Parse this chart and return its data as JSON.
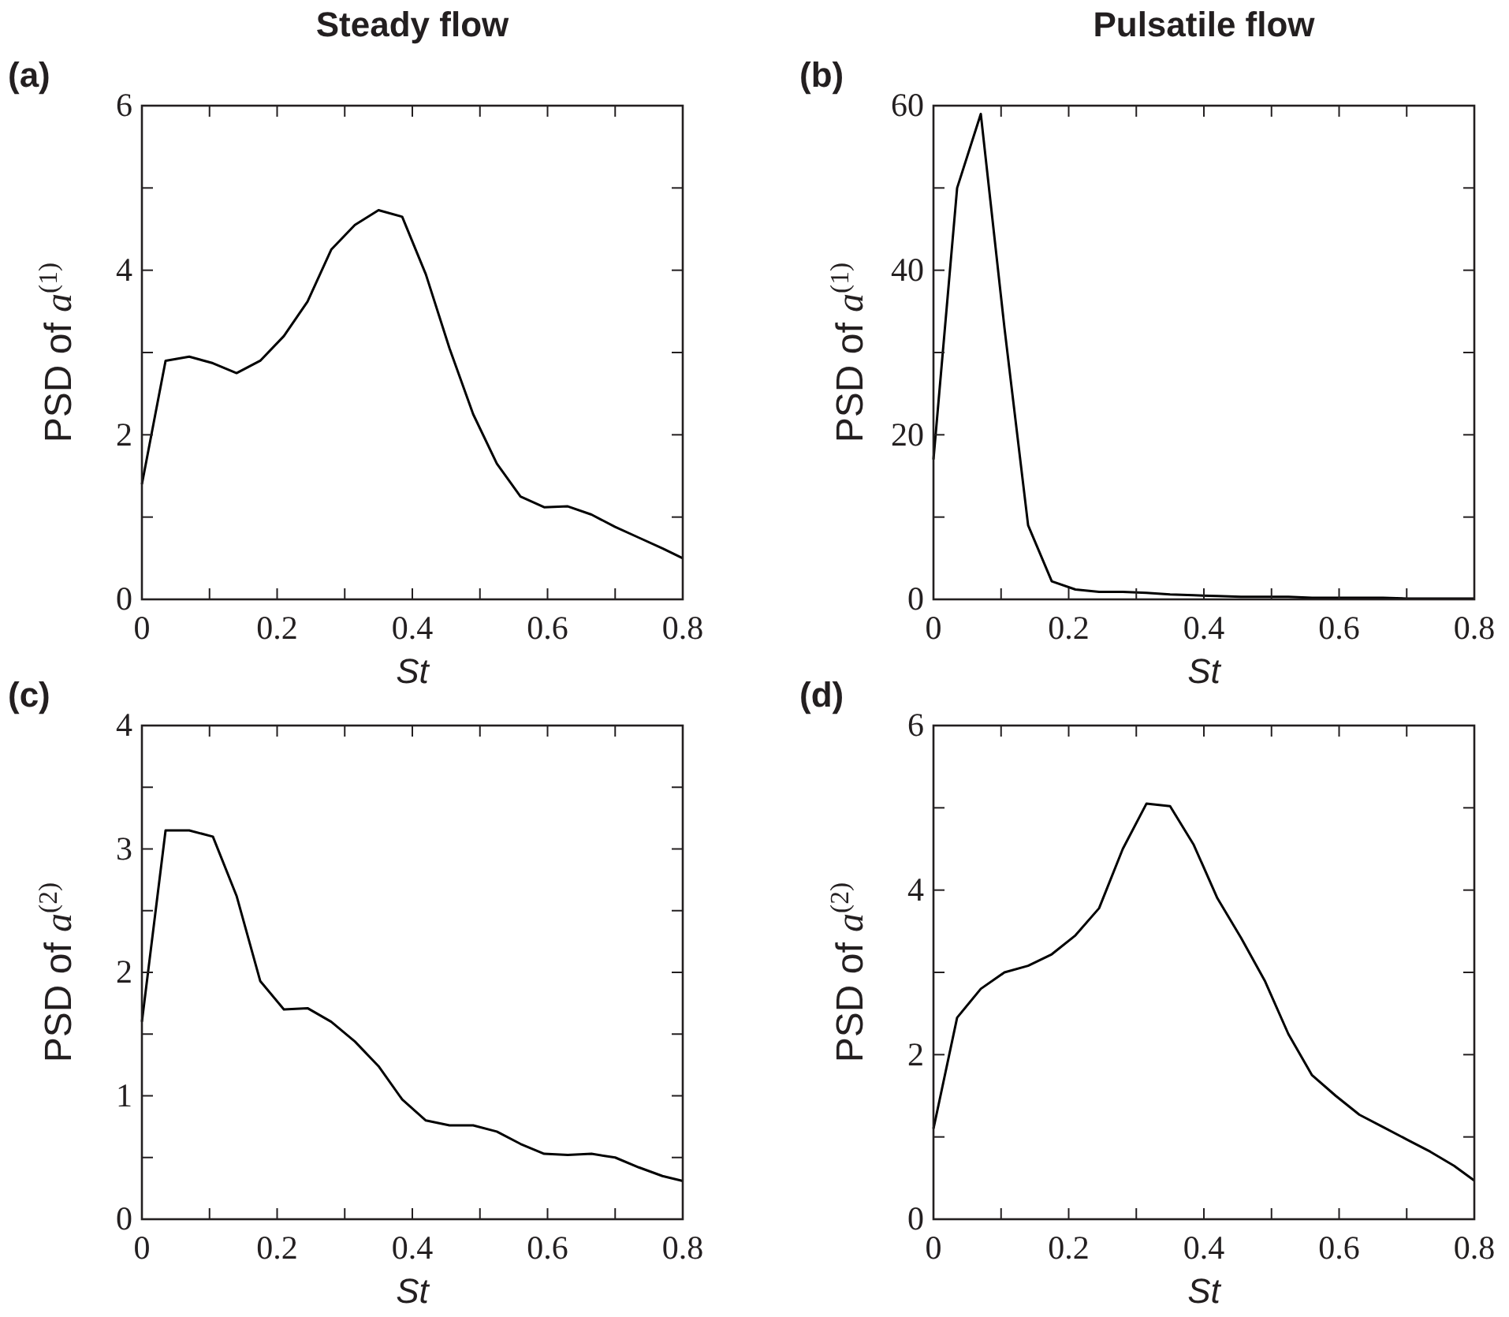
{
  "chart_data": [
    {
      "type": "line",
      "title": "Steady flow",
      "annotations": [
        "(a)"
      ],
      "xlabel": "St",
      "ylabel": "PSD of a$^{(1)}$",
      "line_style": "solid",
      "x": [
        0,
        0.035,
        0.07,
        0.105,
        0.14,
        0.175,
        0.21,
        0.245,
        0.28,
        0.315,
        0.35,
        0.385,
        0.42,
        0.455,
        0.49,
        0.525,
        0.56,
        0.595,
        0.63,
        0.665,
        0.7,
        0.735,
        0.77,
        0.8
      ],
      "series": [
        {
          "color": "#000000",
          "values": [
            1.4,
            2.9,
            2.95,
            2.87,
            2.75,
            2.9,
            3.2,
            3.62,
            4.25,
            4.55,
            4.73,
            4.65,
            3.95,
            3.05,
            2.25,
            1.65,
            1.25,
            1.12,
            1.13,
            1.03,
            0.88,
            0.75,
            0.62,
            0.5
          ]
        }
      ],
      "xlim": [
        0,
        0.8
      ],
      "xticks": [
        0,
        {
          "value": 0.1,
          "label": null
        },
        0.2,
        {
          "value": 0.3,
          "label": null
        },
        0.4,
        {
          "value": 0.5,
          "label": null
        },
        0.6,
        {
          "value": 0.7,
          "label": null
        },
        0.8
      ],
      "ylim": [
        0,
        6
      ],
      "yticks": [
        0,
        {
          "value": 1,
          "label": null
        },
        2,
        {
          "value": 3,
          "label": null
        },
        4,
        {
          "value": 5,
          "label": null
        },
        6
      ]
    },
    {
      "type": "line",
      "title": "Pulsatile flow",
      "annotations": [
        "(b)"
      ],
      "xlabel": "St",
      "ylabel": "PSD of a$^{(1)}$",
      "line_style": "solid",
      "x": [
        0,
        0.035,
        0.07,
        0.105,
        0.14,
        0.175,
        0.21,
        0.245,
        0.28,
        0.315,
        0.35,
        0.385,
        0.42,
        0.455,
        0.49,
        0.525,
        0.56,
        0.595,
        0.63,
        0.665,
        0.7,
        0.735,
        0.77,
        0.8
      ],
      "series": [
        {
          "color": "#000000",
          "values": [
            17,
            50,
            59,
            33,
            9,
            2.2,
            1.2,
            0.9,
            0.9,
            0.8,
            0.6,
            0.5,
            0.4,
            0.3,
            0.3,
            0.3,
            0.2,
            0.2,
            0.2,
            0.2,
            0.1,
            0.1,
            0.1,
            0.1
          ]
        }
      ],
      "xlim": [
        0,
        0.8
      ],
      "xticks": [
        0,
        {
          "value": 0.1,
          "label": null
        },
        0.2,
        {
          "value": 0.3,
          "label": null
        },
        0.4,
        {
          "value": 0.5,
          "label": null
        },
        0.6,
        {
          "value": 0.7,
          "label": null
        },
        0.8
      ],
      "ylim": [
        0,
        60
      ],
      "yticks": [
        0,
        {
          "value": 10,
          "label": null
        },
        20,
        {
          "value": 30,
          "label": null
        },
        40,
        {
          "value": 50,
          "label": null
        },
        60
      ]
    },
    {
      "type": "line",
      "annotations": [
        "(c)"
      ],
      "xlabel": "St",
      "ylabel": "PSD of a$^{(2)}$",
      "line_style": "solid",
      "x": [
        0,
        0.035,
        0.07,
        0.105,
        0.14,
        0.175,
        0.21,
        0.245,
        0.28,
        0.315,
        0.35,
        0.385,
        0.42,
        0.455,
        0.49,
        0.525,
        0.56,
        0.595,
        0.63,
        0.665,
        0.7,
        0.735,
        0.77,
        0.8
      ],
      "series": [
        {
          "color": "#000000",
          "values": [
            1.6,
            3.15,
            3.15,
            3.1,
            2.62,
            1.93,
            1.7,
            1.71,
            1.6,
            1.44,
            1.24,
            0.97,
            0.8,
            0.76,
            0.76,
            0.71,
            0.61,
            0.53,
            0.52,
            0.53,
            0.5,
            0.42,
            0.35,
            0.31
          ]
        }
      ],
      "xlim": [
        0,
        0.8
      ],
      "xticks": [
        0,
        {
          "value": 0.1,
          "label": null
        },
        0.2,
        {
          "value": 0.3,
          "label": null
        },
        0.4,
        {
          "value": 0.5,
          "label": null
        },
        0.6,
        {
          "value": 0.7,
          "label": null
        },
        0.8
      ],
      "ylim": [
        0,
        4
      ],
      "yticks": [
        0,
        {
          "value": 0.5,
          "label": null
        },
        1,
        {
          "value": 1.5,
          "label": null
        },
        2,
        {
          "value": 2.5,
          "label": null
        },
        3,
        {
          "value": 3.5,
          "label": null
        },
        4
      ]
    },
    {
      "type": "line",
      "annotations": [
        "(d)"
      ],
      "xlabel": "St",
      "ylabel": "PSD of a$^{(2)}$",
      "line_style": "solid",
      "x": [
        0,
        0.035,
        0.07,
        0.105,
        0.14,
        0.175,
        0.21,
        0.245,
        0.28,
        0.315,
        0.35,
        0.385,
        0.42,
        0.455,
        0.49,
        0.525,
        0.56,
        0.595,
        0.63,
        0.665,
        0.7,
        0.735,
        0.77,
        0.8
      ],
      "series": [
        {
          "color": "#000000",
          "values": [
            1.1,
            2.45,
            2.8,
            3.0,
            3.08,
            3.22,
            3.45,
            3.78,
            4.5,
            5.05,
            5.02,
            4.55,
            3.9,
            3.42,
            2.9,
            2.25,
            1.75,
            1.5,
            1.27,
            1.12,
            0.97,
            0.82,
            0.65,
            0.47
          ]
        }
      ],
      "xlim": [
        0,
        0.8
      ],
      "xticks": [
        0,
        {
          "value": 0.1,
          "label": null
        },
        0.2,
        {
          "value": 0.3,
          "label": null
        },
        0.4,
        {
          "value": 0.5,
          "label": null
        },
        0.6,
        {
          "value": 0.7,
          "label": null
        },
        0.8
      ],
      "ylim": [
        0,
        6
      ],
      "yticks": [
        0,
        {
          "value": 1,
          "label": null
        },
        2,
        {
          "value": 3,
          "label": null
        },
        4,
        {
          "value": 5,
          "label": null
        },
        6
      ]
    }
  ]
}
